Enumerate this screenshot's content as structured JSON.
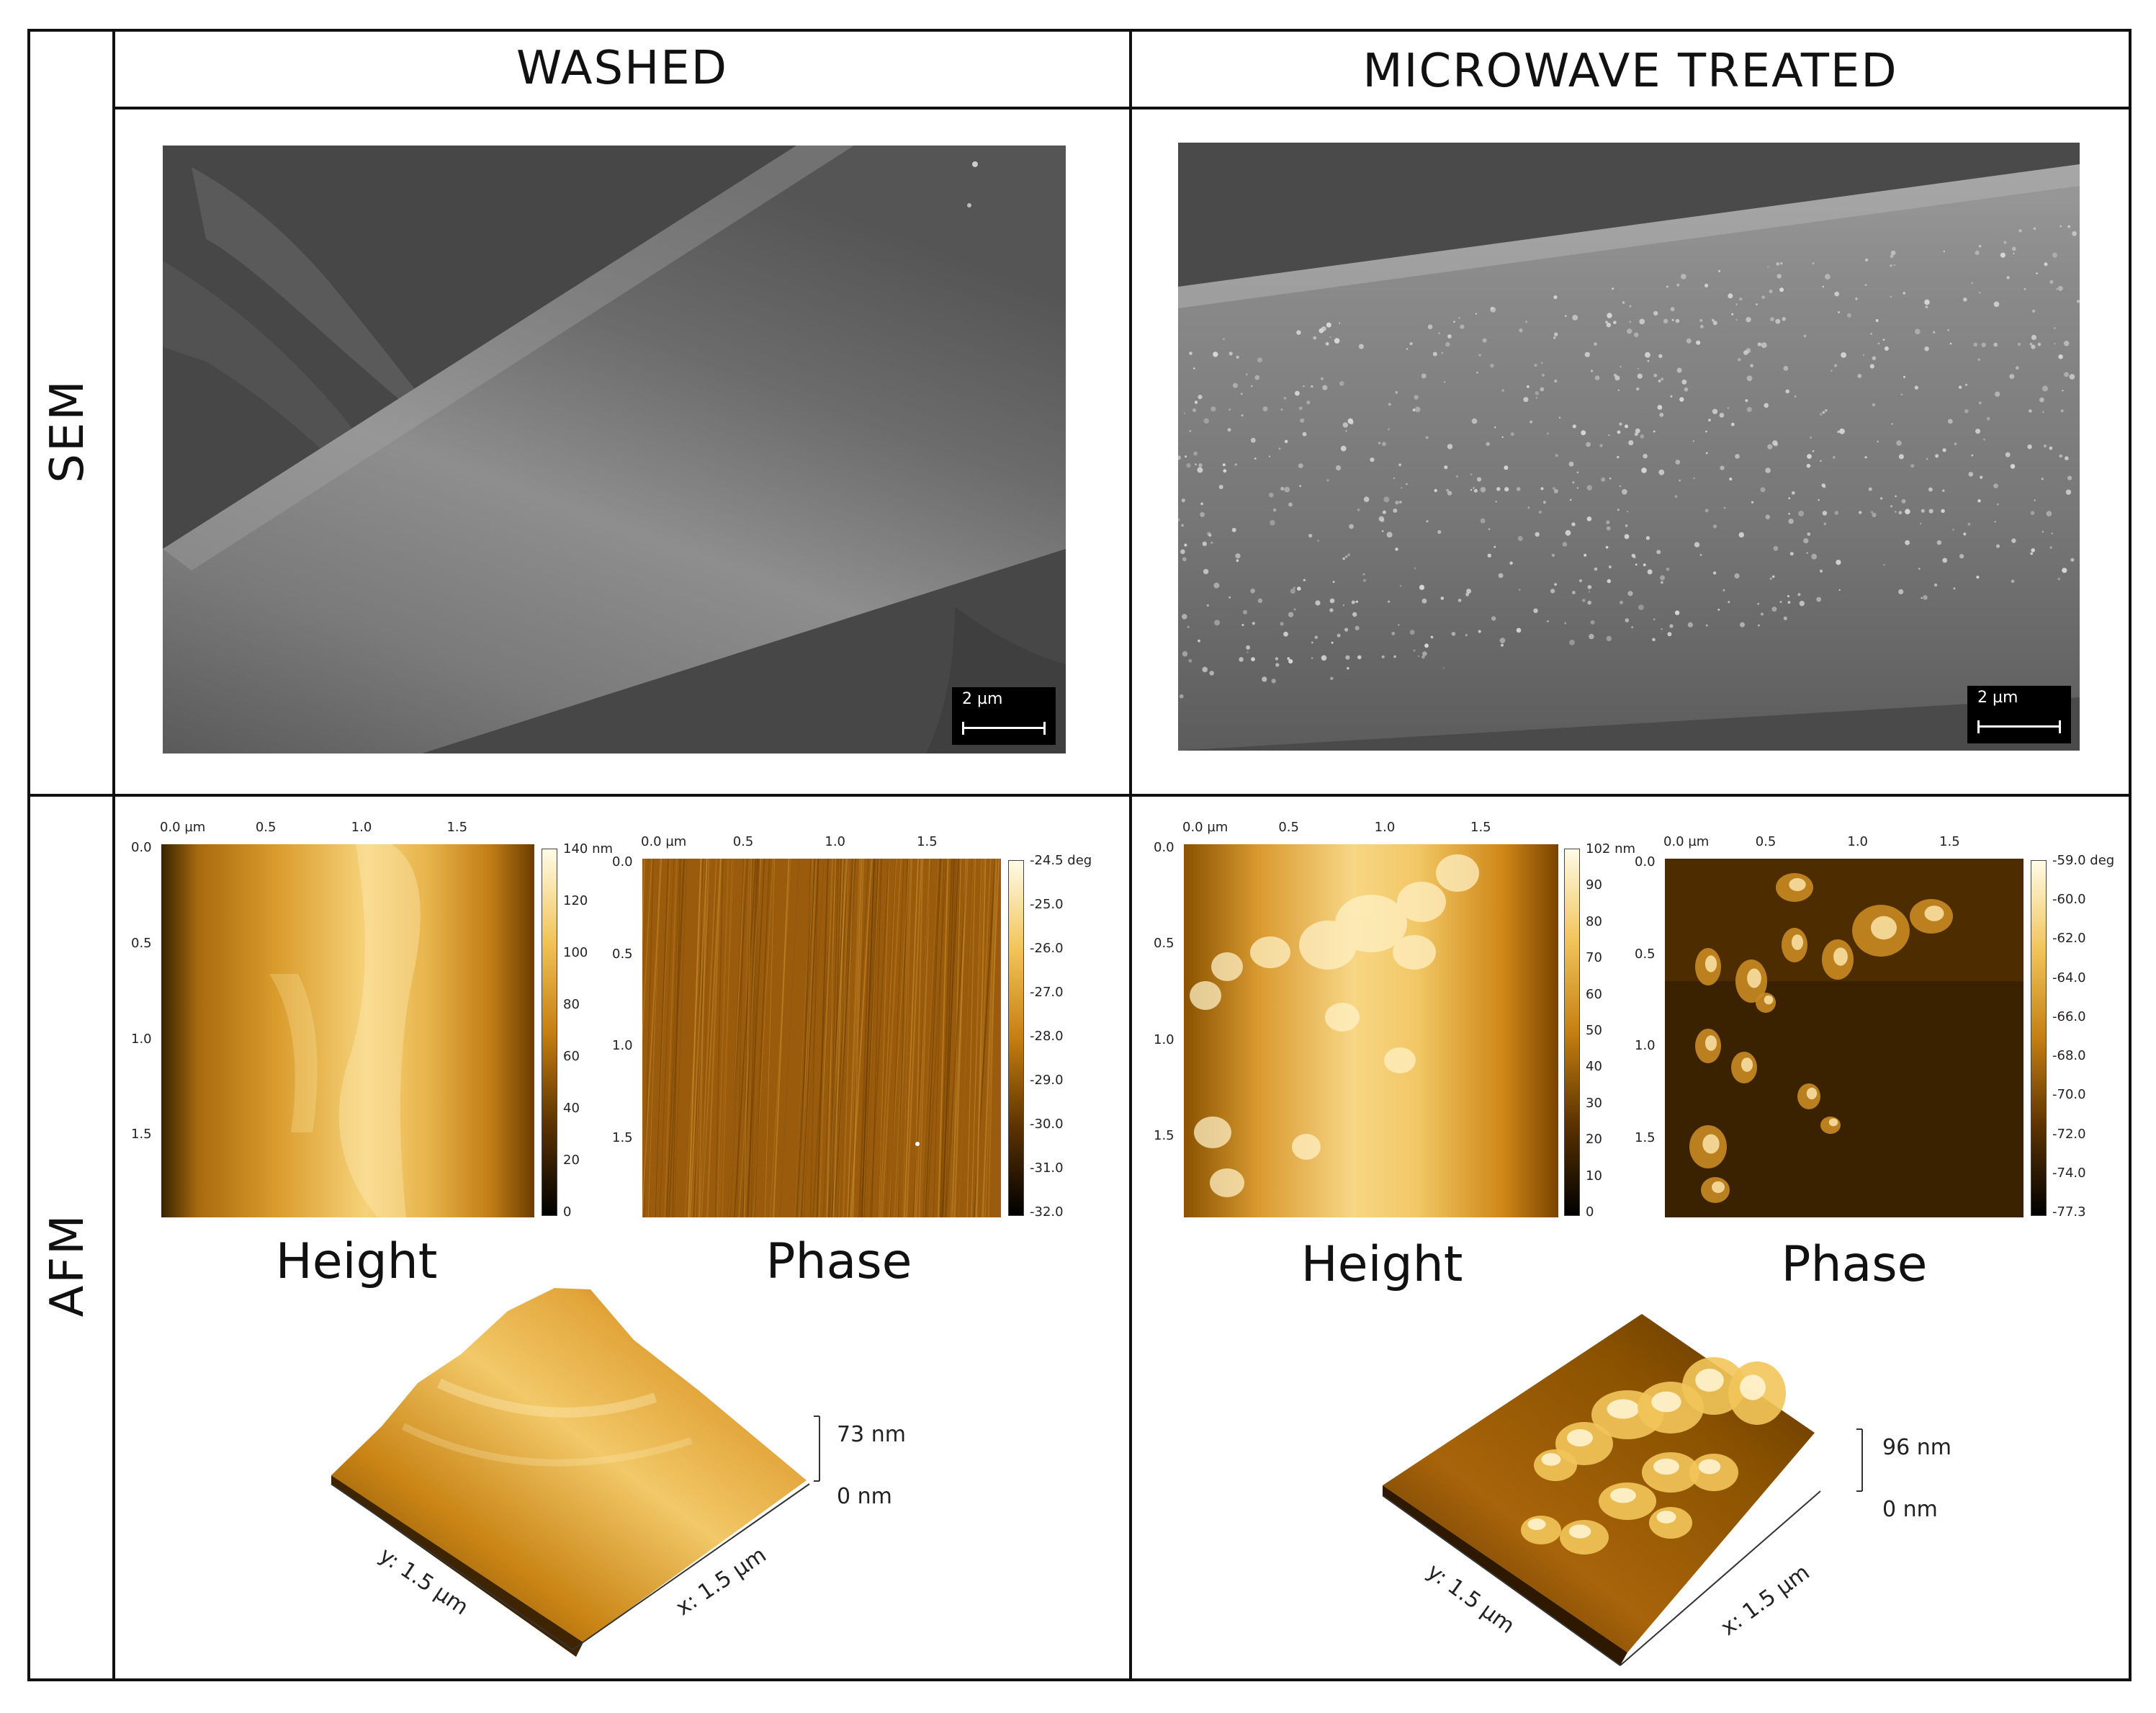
{
  "columns": {
    "washed": "WASHED",
    "microwave": "MICROWAVE TREATED"
  },
  "rows": {
    "sem": "SEM",
    "afm": "AFM"
  },
  "sem": {
    "scale_left": "2 µm",
    "scale_right": "2 µm"
  },
  "afm": {
    "axis_x_ticks": [
      "0.0 µm",
      "0.5",
      "1.0",
      "1.5"
    ],
    "axis_y_ticks": [
      "0.0",
      "0.5",
      "1.0",
      "1.5"
    ],
    "captions": {
      "height": "Height",
      "phase": "Phase"
    },
    "washed_height_scale": [
      "140 nm",
      "120",
      "100",
      "80",
      "60",
      "40",
      "20",
      "0"
    ],
    "washed_phase_scale": [
      "-24.5 deg",
      "-25.0",
      "-26.0",
      "-27.0",
      "-28.0",
      "-29.0",
      "-30.0",
      "-31.0",
      "-32.0"
    ],
    "mw_height_scale": [
      "102 nm",
      "90",
      "80",
      "70",
      "60",
      "50",
      "40",
      "30",
      "20",
      "10",
      "0"
    ],
    "mw_phase_scale": [
      "-59.0 deg",
      "-60.0",
      "-62.0",
      "-64.0",
      "-66.0",
      "-68.0",
      "-70.0",
      "-72.0",
      "-74.0",
      "-77.3"
    ],
    "washed_3d": {
      "ztop": "73 nm",
      "zbot": "0 nm",
      "x": "x: 1.5 µm",
      "y": "y: 1.5 µm"
    },
    "mw_3d": {
      "ztop": "96 nm",
      "zbot": "0 nm",
      "x": "x: 1.5 µm",
      "y": "y: 1.5 µm"
    }
  }
}
